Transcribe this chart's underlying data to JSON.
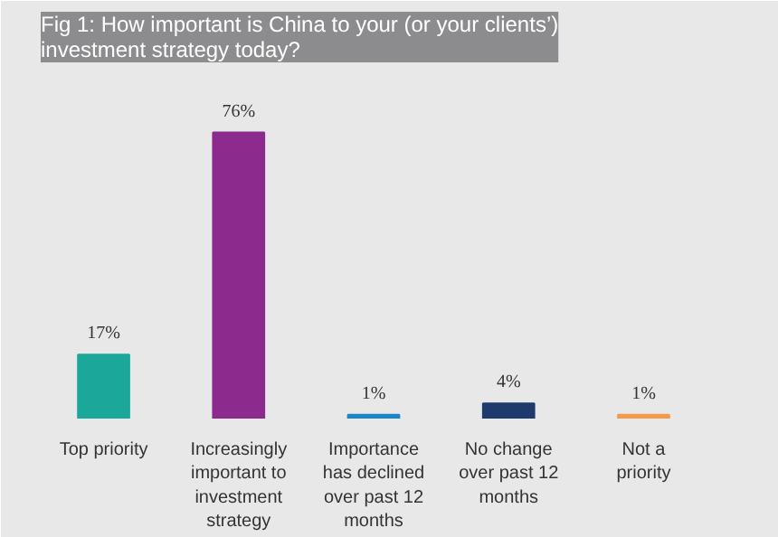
{
  "chart_data": {
    "type": "bar",
    "title": "Fig 1: How important is China to your (or your clients’) investment strategy today?",
    "categories": [
      "Top priority",
      "Increasingly important to investment strategy",
      "Importance has declined over past 12 months",
      "No change over past 12 months",
      "Not a priority"
    ],
    "values": [
      17,
      76,
      1,
      4,
      1
    ],
    "colors": [
      "#1ba89a",
      "#8c2a8e",
      "#1c87c7",
      "#1f3a6d",
      "#f39a4e"
    ],
    "data_labels": true,
    "value_labels": [
      "17%",
      "76%",
      "1%",
      "4%",
      "1%"
    ]
  }
}
